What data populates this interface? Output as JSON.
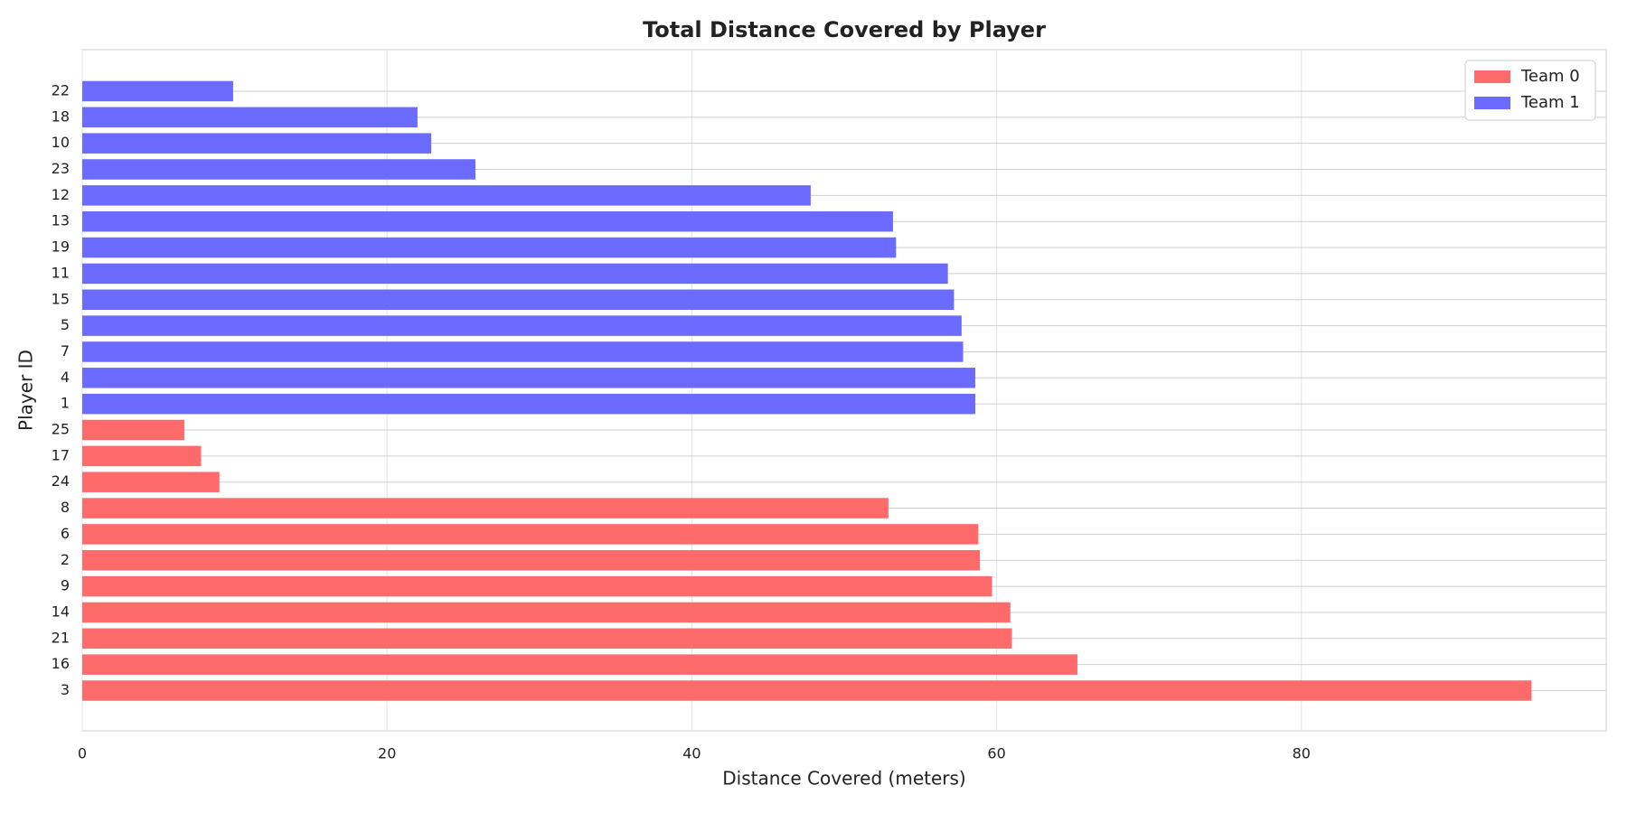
{
  "chart_data": {
    "type": "barh",
    "title": "Total Distance Covered by Player",
    "xlabel": "Distance Covered (meters)",
    "ylabel": "Player ID",
    "categories": [
      "3",
      "16",
      "21",
      "14",
      "9",
      "2",
      "6",
      "8",
      "24",
      "17",
      "25",
      "1",
      "4",
      "7",
      "5",
      "15",
      "11",
      "19",
      "13",
      "12",
      "23",
      "10",
      "18",
      "22"
    ],
    "series": [
      {
        "name": "Team 0",
        "color": "#ff6b6b",
        "values": [
          95.1,
          65.3,
          61.0,
          60.9,
          59.7,
          58.9,
          58.8,
          52.9,
          9.0,
          7.8,
          6.7,
          null,
          null,
          null,
          null,
          null,
          null,
          null,
          null,
          null,
          null,
          null,
          null,
          null
        ]
      },
      {
        "name": "Team 1",
        "color": "#6b6bff",
        "values": [
          null,
          null,
          null,
          null,
          null,
          null,
          null,
          null,
          null,
          null,
          null,
          58.6,
          58.6,
          57.8,
          57.7,
          57.2,
          56.8,
          53.4,
          53.2,
          47.8,
          25.8,
          22.9,
          22.0,
          9.9
        ]
      }
    ],
    "xlim": [
      0,
      100
    ],
    "xticks": [
      0,
      20,
      40,
      60,
      80
    ],
    "grid": true,
    "legend": "upper right"
  }
}
